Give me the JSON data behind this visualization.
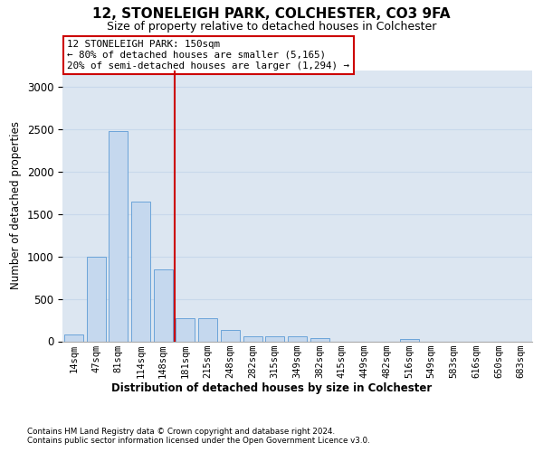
{
  "title": "12, STONELEIGH PARK, COLCHESTER, CO3 9FA",
  "subtitle": "Size of property relative to detached houses in Colchester",
  "xlabel": "Distribution of detached houses by size in Colchester",
  "ylabel": "Number of detached properties",
  "categories": [
    "14sqm",
    "47sqm",
    "81sqm",
    "114sqm",
    "148sqm",
    "181sqm",
    "215sqm",
    "248sqm",
    "282sqm",
    "315sqm",
    "349sqm",
    "382sqm",
    "415sqm",
    "449sqm",
    "482sqm",
    "516sqm",
    "549sqm",
    "583sqm",
    "616sqm",
    "650sqm",
    "683sqm"
  ],
  "values": [
    75,
    1000,
    2480,
    1650,
    850,
    270,
    270,
    130,
    60,
    55,
    55,
    40,
    0,
    0,
    0,
    30,
    0,
    0,
    0,
    0,
    0
  ],
  "bar_color": "#c5d8ee",
  "bar_edge_color": "#5b9bd5",
  "grid_color": "#c8d8eb",
  "background_color": "#dce6f1",
  "vline_color": "#cc0000",
  "vline_x": 4.5,
  "annotation_line1": "12 STONELEIGH PARK: 150sqm",
  "annotation_line2": "← 80% of detached houses are smaller (5,165)",
  "annotation_line3": "20% of semi-detached houses are larger (1,294) →",
  "annotation_box_edgecolor": "#cc0000",
  "footer1": "Contains HM Land Registry data © Crown copyright and database right 2024.",
  "footer2": "Contains public sector information licensed under the Open Government Licence v3.0.",
  "ylim": [
    0,
    3200
  ],
  "yticks": [
    0,
    500,
    1000,
    1500,
    2000,
    2500,
    3000
  ]
}
